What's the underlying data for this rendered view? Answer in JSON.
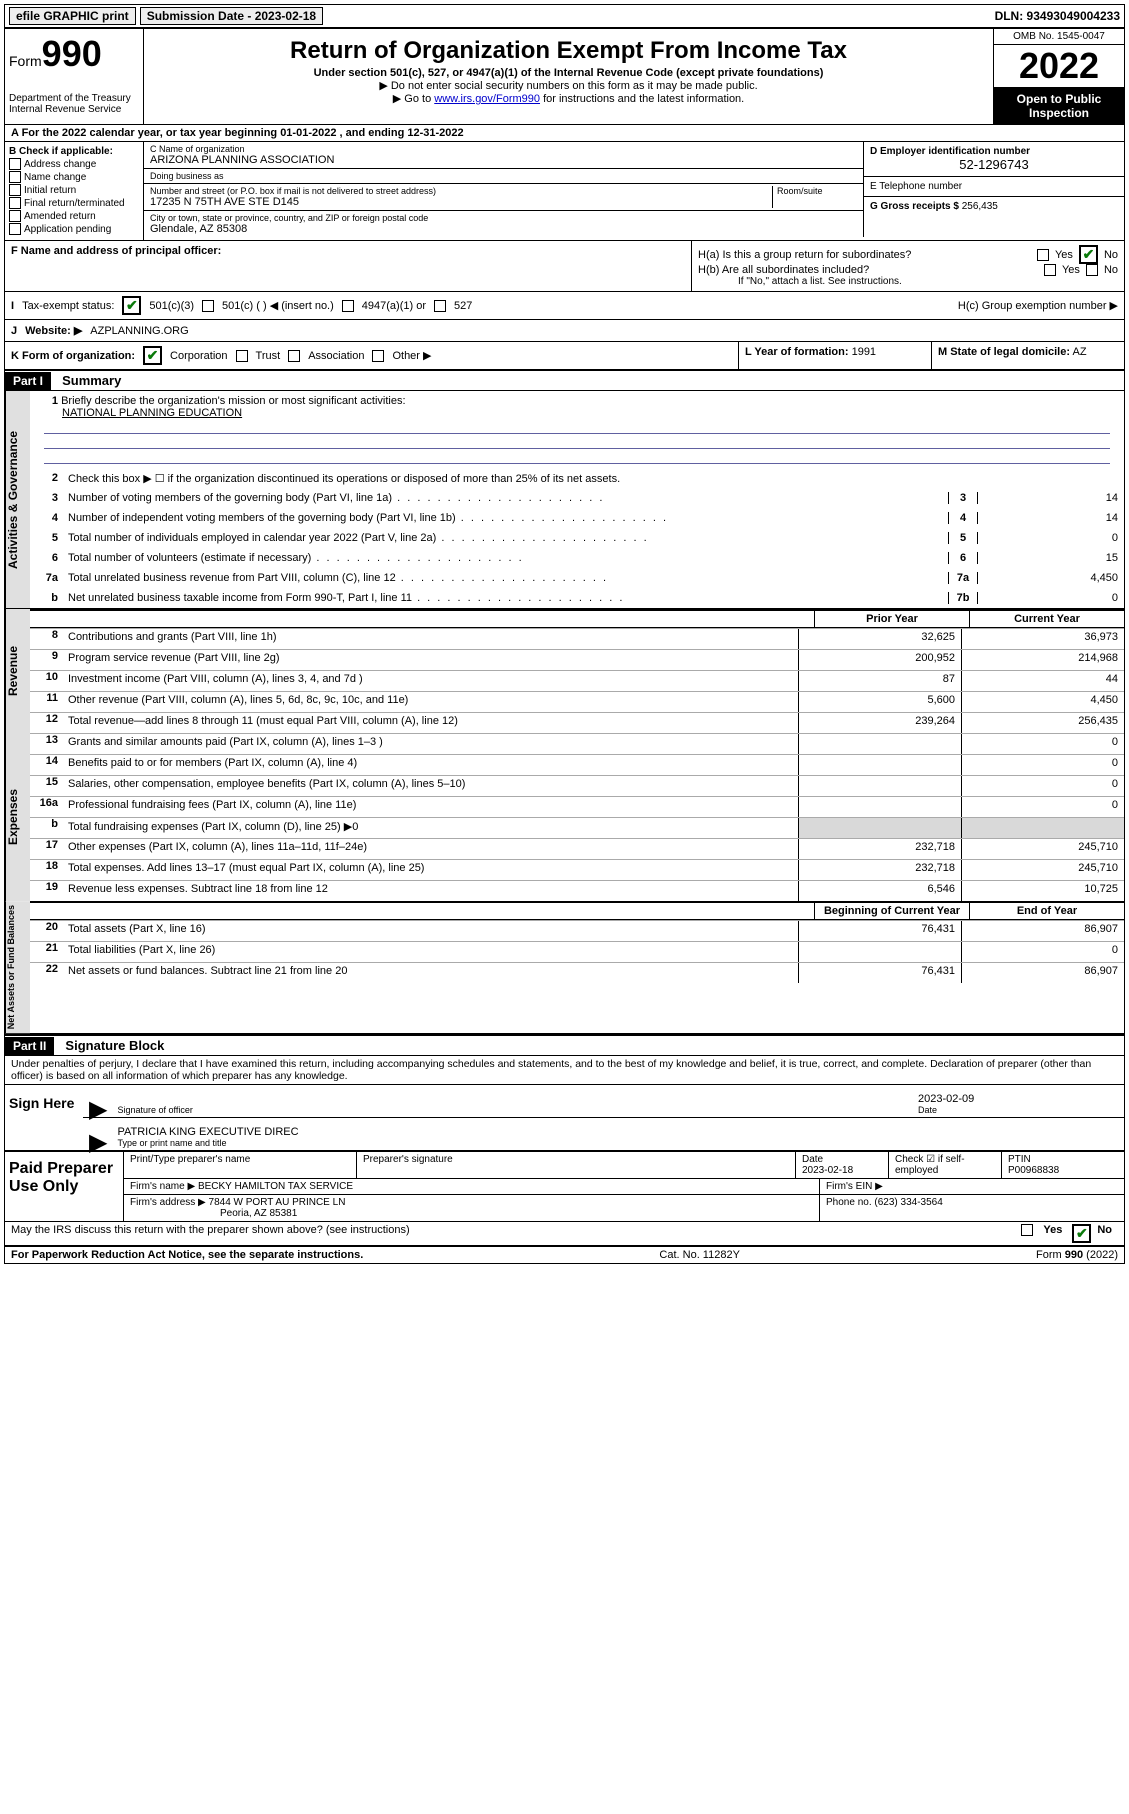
{
  "topbar": {
    "efile": "efile GRAPHIC print",
    "submission_label": "Submission Date - 2023-02-18",
    "dln": "DLN: 93493049004233"
  },
  "header": {
    "form_word": "Form",
    "form_num": "990",
    "dept": "Department of the Treasury",
    "irs": "Internal Revenue Service",
    "title": "Return of Organization Exempt From Income Tax",
    "subtitle": "Under section 501(c), 527, or 4947(a)(1) of the Internal Revenue Code (except private foundations)",
    "note1": "▶ Do not enter social security numbers on this form as it may be made public.",
    "note2_pre": "▶ Go to ",
    "note2_link": "www.irs.gov/Form990",
    "note2_post": " for instructions and the latest information.",
    "omb": "OMB No. 1545-0047",
    "year": "2022",
    "open": "Open to Public Inspection"
  },
  "row_a": "A For the 2022 calendar year, or tax year beginning 01-01-2022   , and ending 12-31-2022",
  "colB": {
    "title": "B Check if applicable:",
    "items": [
      "Address change",
      "Name change",
      "Initial return",
      "Final return/terminated",
      "Amended return",
      "Application pending"
    ]
  },
  "nameC": {
    "label": "C Name of organization",
    "val": "ARIZONA PLANNING ASSOCIATION"
  },
  "dba": {
    "label": "Doing business as",
    "val": ""
  },
  "addr": {
    "label": "Number and street (or P.O. box if mail is not delivered to street address)",
    "room": "Room/suite",
    "val": "17235 N 75TH AVE STE D145",
    "citylabel": "City or town, state or province, country, and ZIP or foreign postal code",
    "cityval": "Glendale, AZ  85308"
  },
  "ein": {
    "label": "D Employer identification number",
    "val": "52-1296743"
  },
  "phone": {
    "label": "E Telephone number",
    "val": ""
  },
  "gross": {
    "label": "G Gross receipts $",
    "val": "256,435"
  },
  "fOfficer": "F  Name and address of principal officer:",
  "h": {
    "a": "H(a)  Is this a group return for subordinates?",
    "b": "H(b)  Are all subordinates included?",
    "bnote": "If \"No,\" attach a list. See instructions.",
    "c": "H(c)  Group exemption number ▶"
  },
  "status": {
    "label": "Tax-exempt status:",
    "o501c3": "501(c)(3)",
    "o501c": "501(c) (  ) ◀ (insert no.)",
    "o4947": "4947(a)(1) or",
    "o527": "527"
  },
  "website": {
    "label": "Website: ▶",
    "val": "AZPLANNING.ORG"
  },
  "korg": {
    "label": "K Form of organization:",
    "corp": "Corporation",
    "trust": "Trust",
    "assoc": "Association",
    "other": "Other ▶"
  },
  "lyear": {
    "label": "L Year of formation:",
    "val": "1991"
  },
  "mstate": {
    "label": "M State of legal domicile:",
    "val": "AZ"
  },
  "part1": {
    "header": "Part I",
    "title": "Summary"
  },
  "mission": {
    "q1": "Briefly describe the organization's mission or most significant activities:",
    "text": "NATIONAL PLANNING EDUCATION"
  },
  "lines_single": {
    "l2": "Check this box ▶ ☐  if the organization discontinued its operations or disposed of more than 25% of its net assets.",
    "l3": {
      "desc": "Number of voting members of the governing body (Part VI, line 1a)",
      "k": "3",
      "v": "14"
    },
    "l4": {
      "desc": "Number of independent voting members of the governing body (Part VI, line 1b)",
      "k": "4",
      "v": "14"
    },
    "l5": {
      "desc": "Total number of individuals employed in calendar year 2022 (Part V, line 2a)",
      "k": "5",
      "v": "0"
    },
    "l6": {
      "desc": "Total number of volunteers (estimate if necessary)",
      "k": "6",
      "v": "15"
    },
    "l7a": {
      "desc": "Total unrelated business revenue from Part VIII, column (C), line 12",
      "k": "7a",
      "v": "4,450"
    },
    "l7b": {
      "desc": "Net unrelated business taxable income from Form 990-T, Part I, line 11",
      "k": "7b",
      "v": "0"
    }
  },
  "twocol_header": {
    "prior": "Prior Year",
    "curr": "Current Year"
  },
  "revenue": [
    {
      "n": "8",
      "d": "Contributions and grants (Part VIII, line 1h)",
      "p": "32,625",
      "c": "36,973"
    },
    {
      "n": "9",
      "d": "Program service revenue (Part VIII, line 2g)",
      "p": "200,952",
      "c": "214,968"
    },
    {
      "n": "10",
      "d": "Investment income (Part VIII, column (A), lines 3, 4, and 7d )",
      "p": "87",
      "c": "44"
    },
    {
      "n": "11",
      "d": "Other revenue (Part VIII, column (A), lines 5, 6d, 8c, 9c, 10c, and 11e)",
      "p": "5,600",
      "c": "4,450"
    },
    {
      "n": "12",
      "d": "Total revenue—add lines 8 through 11 (must equal Part VIII, column (A), line 12)",
      "p": "239,264",
      "c": "256,435"
    }
  ],
  "expenses": [
    {
      "n": "13",
      "d": "Grants and similar amounts paid (Part IX, column (A), lines 1–3 )",
      "p": "",
      "c": "0"
    },
    {
      "n": "14",
      "d": "Benefits paid to or for members (Part IX, column (A), line 4)",
      "p": "",
      "c": "0"
    },
    {
      "n": "15",
      "d": "Salaries, other compensation, employee benefits (Part IX, column (A), lines 5–10)",
      "p": "",
      "c": "0"
    },
    {
      "n": "16a",
      "d": "Professional fundraising fees (Part IX, column (A), line 11e)",
      "p": "",
      "c": "0"
    },
    {
      "n": "b",
      "d": "Total fundraising expenses (Part IX, column (D), line 25) ▶0",
      "p": "SHADE",
      "c": "SHADE"
    },
    {
      "n": "17",
      "d": "Other expenses (Part IX, column (A), lines 11a–11d, 11f–24e)",
      "p": "232,718",
      "c": "245,710"
    },
    {
      "n": "18",
      "d": "Total expenses. Add lines 13–17 (must equal Part IX, column (A), line 25)",
      "p": "232,718",
      "c": "245,710"
    },
    {
      "n": "19",
      "d": "Revenue less expenses. Subtract line 18 from line 12",
      "p": "6,546",
      "c": "10,725"
    }
  ],
  "netassets_header": {
    "beg": "Beginning of Current Year",
    "end": "End of Year"
  },
  "netassets": [
    {
      "n": "20",
      "d": "Total assets (Part X, line 16)",
      "p": "76,431",
      "c": "86,907"
    },
    {
      "n": "21",
      "d": "Total liabilities (Part X, line 26)",
      "p": "",
      "c": "0"
    },
    {
      "n": "22",
      "d": "Net assets or fund balances. Subtract line 21 from line 20",
      "p": "76,431",
      "c": "86,907"
    }
  ],
  "part2": {
    "header": "Part II",
    "title": "Signature Block"
  },
  "penalties": "Under penalties of perjury, I declare that I have examined this return, including accompanying schedules and statements, and to the best of my knowledge and belief, it is true, correct, and complete. Declaration of preparer (other than officer) is based on all information of which preparer has any knowledge.",
  "sign": {
    "here": "Sign Here",
    "sig_of_officer": "Signature of officer",
    "date": "Date",
    "date_val": "2023-02-09",
    "typed": "PATRICIA KING  EXECUTIVE DIREC",
    "typed_label": "Type or print name and title"
  },
  "paid": {
    "label": "Paid Preparer Use Only",
    "h_name": "Print/Type preparer's name",
    "h_sig": "Preparer's signature",
    "h_date": "Date",
    "date_val": "2023-02-18",
    "h_check": "Check ☑ if self-employed",
    "h_ptin": "PTIN",
    "ptin_val": "P00968838",
    "firm_name_l": "Firm's name    ▶",
    "firm_name": "BECKY HAMILTON TAX SERVICE",
    "firm_ein_l": "Firm's EIN ▶",
    "firm_addr_l": "Firm's address ▶",
    "firm_addr1": "7844 W PORT AU PRINCE LN",
    "firm_addr2": "Peoria, AZ  85381",
    "phone_l": "Phone no.",
    "phone": "(623) 334-3564"
  },
  "discuss": "May the IRS discuss this return with the preparer shown above? (see instructions)",
  "footer": {
    "left": "For Paperwork Reduction Act Notice, see the separate instructions.",
    "mid": "Cat. No. 11282Y",
    "right": "Form 990 (2022)"
  },
  "vtabs": {
    "gov": "Activities & Governance",
    "rev": "Revenue",
    "exp": "Expenses",
    "net": "Net Assets or Fund Balances"
  },
  "yesno": {
    "yes": "Yes",
    "no": "No"
  }
}
